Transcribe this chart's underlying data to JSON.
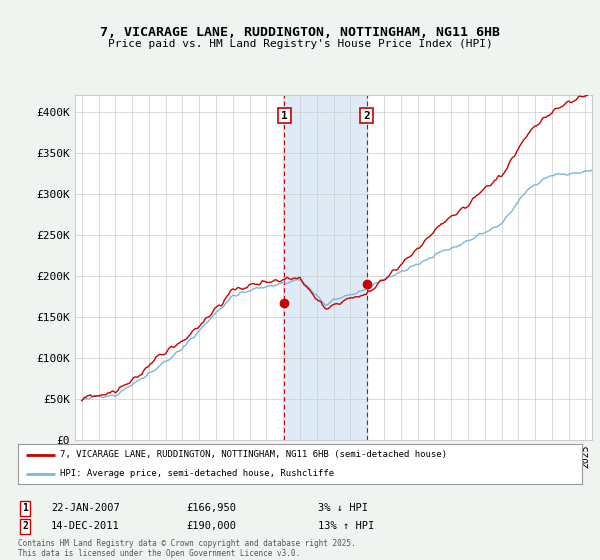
{
  "title": "7, VICARAGE LANE, RUDDINGTON, NOTTINGHAM, NG11 6HB",
  "subtitle": "Price paid vs. HM Land Registry's House Price Index (HPI)",
  "hpi_color": "#7ab8d8",
  "price_color": "#cc0000",
  "background_color": "#f0f4f0",
  "plot_bg_color": "#ffffff",
  "shaded_region_color": "#deeaf5",
  "marker1_x": 2007.07,
  "marker1_y": 166950,
  "marker2_x": 2011.96,
  "marker2_y": 190000,
  "marker1_date": "22-JAN-2007",
  "marker1_price": "£166,950",
  "marker1_hpi": "3% ↓ HPI",
  "marker2_date": "14-DEC-2011",
  "marker2_price": "£190,000",
  "marker2_hpi": "13% ↑ HPI",
  "legend_line1": "7, VICARAGE LANE, RUDDINGTON, NOTTINGHAM, NG11 6HB (semi-detached house)",
  "legend_line2": "HPI: Average price, semi-detached house, Rushcliffe",
  "footer": "Contains HM Land Registry data © Crown copyright and database right 2025.\nThis data is licensed under the Open Government Licence v3.0.",
  "ylim": [
    0,
    420000
  ],
  "xlim_start": 1994.6,
  "xlim_end": 2025.4,
  "yticks": [
    0,
    50000,
    100000,
    150000,
    200000,
    250000,
    300000,
    350000,
    400000
  ],
  "ytick_labels": [
    "£0",
    "£50K",
    "£100K",
    "£150K",
    "£200K",
    "£250K",
    "£300K",
    "£350K",
    "£400K"
  ]
}
